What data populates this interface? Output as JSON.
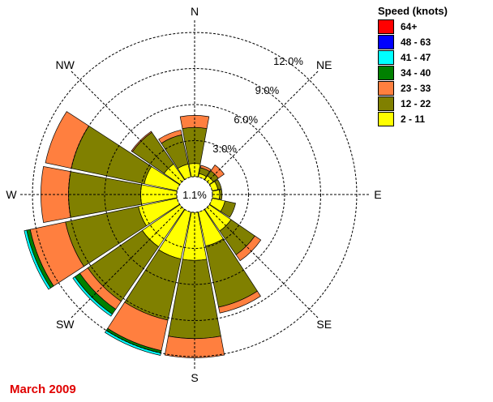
{
  "chart_data": {
    "type": "wind-rose",
    "caption": "March 2009",
    "calm_label": "1.1%",
    "directions": [
      "N",
      "NE",
      "E",
      "SE",
      "S",
      "SW",
      "W",
      "NW"
    ],
    "ring_labels": [
      "3.0%",
      "6.0%",
      "9.0%",
      "12.0%"
    ],
    "rings_percent": [
      3,
      6,
      9,
      12
    ],
    "legend_title": "Speed (knots)",
    "speed_classes": [
      {
        "label": "64+",
        "color": "#ff0000"
      },
      {
        "label": "48 - 63",
        "color": "#0000ff"
      },
      {
        "label": "41 - 47",
        "color": "#00ffff"
      },
      {
        "label": "34 - 40",
        "color": "#008000"
      },
      {
        "label": "23 - 33",
        "color": "#ff7f3f"
      },
      {
        "label": "12 - 22",
        "color": "#808000"
      },
      {
        "label": "2 - 11",
        "color": "#ffff00"
      }
    ],
    "sectors": [
      {
        "dir": "N",
        "bins": {
          "2 - 11": 1.1,
          "12 - 22": 3.0,
          "23 - 33": 1.0,
          "34 - 40": 0,
          "41 - 47": 0,
          "48 - 63": 0,
          "64+": 0
        }
      },
      {
        "dir": "NNE",
        "bins": {
          "2 - 11": 0.3,
          "12 - 22": 0.5,
          "23 - 33": 0.2,
          "34 - 40": 0,
          "41 - 47": 0,
          "48 - 63": 0,
          "64+": 0
        }
      },
      {
        "dir": "NE",
        "bins": {
          "2 - 11": 0.4,
          "12 - 22": 0.5,
          "23 - 33": 0.6,
          "34 - 40": 0,
          "41 - 47": 0,
          "48 - 63": 0,
          "64+": 0
        }
      },
      {
        "dir": "ENE",
        "bins": {
          "2 - 11": 0.5,
          "12 - 22": 0.3,
          "23 - 33": 0,
          "34 - 40": 0,
          "41 - 47": 0,
          "48 - 63": 0,
          "64+": 0
        }
      },
      {
        "dir": "E",
        "bins": {
          "2 - 11": 0.6,
          "12 - 22": 0.2,
          "23 - 33": 0,
          "34 - 40": 0,
          "41 - 47": 0,
          "48 - 63": 0,
          "64+": 0
        }
      },
      {
        "dir": "ESE",
        "bins": {
          "2 - 11": 1.1,
          "12 - 22": 0.9,
          "23 - 33": 0,
          "34 - 40": 0,
          "41 - 47": 0,
          "48 - 63": 0,
          "64+": 0
        }
      },
      {
        "dir": "SE",
        "bins": {
          "2 - 11": 2.2,
          "12 - 22": 2.4,
          "23 - 33": 0.6,
          "34 - 40": 0,
          "41 - 47": 0,
          "48 - 63": 0,
          "64+": 0
        }
      },
      {
        "dir": "SSE",
        "bins": {
          "2 - 11": 2.9,
          "12 - 22": 5.2,
          "23 - 33": 0.5,
          "34 - 40": 0,
          "41 - 47": 0,
          "48 - 63": 0,
          "64+": 0
        }
      },
      {
        "dir": "S",
        "bins": {
          "2 - 11": 4.0,
          "12 - 22": 6.5,
          "23 - 33": 1.6,
          "34 - 40": 0,
          "41 - 47": 0,
          "48 - 63": 0,
          "64+": 0
        }
      },
      {
        "dir": "SSW",
        "bins": {
          "2 - 11": 4.0,
          "12 - 22": 5.2,
          "23 - 33": 2.6,
          "34 - 40": 0.2,
          "41 - 47": 0.2,
          "48 - 63": 0,
          "64+": 0
        }
      },
      {
        "dir": "SW",
        "bins": {
          "2 - 11": 3.8,
          "12 - 22": 5.5,
          "23 - 33": 0.8,
          "34 - 40": 0.5,
          "41 - 47": 0.2,
          "48 - 63": 0,
          "64+": 0
        }
      },
      {
        "dir": "WSW",
        "bins": {
          "2 - 11": 3.3,
          "12 - 22": 6.2,
          "23 - 33": 3.0,
          "34 - 40": 0.3,
          "41 - 47": 0.2,
          "48 - 63": 0,
          "64+": 0
        }
      },
      {
        "dir": "W",
        "bins": {
          "2 - 11": 3.0,
          "12 - 22": 6.0,
          "23 - 33": 2.3,
          "34 - 40": 0,
          "41 - 47": 0,
          "48 - 63": 0,
          "64+": 0
        }
      },
      {
        "dir": "WNW",
        "bins": {
          "2 - 11": 2.8,
          "12 - 22": 6.2,
          "23 - 33": 2.2,
          "34 - 40": 0,
          "41 - 47": 0,
          "48 - 63": 0,
          "64+": 0
        }
      },
      {
        "dir": "NW",
        "bins": {
          "2 - 11": 1.6,
          "12 - 22": 3.2,
          "23 - 33": 0.1,
          "34 - 40": 0,
          "41 - 47": 0,
          "48 - 63": 0,
          "64+": 0
        }
      },
      {
        "dir": "NNW",
        "bins": {
          "2 - 11": 1.1,
          "12 - 22": 2.5,
          "23 - 33": 0.4,
          "34 - 40": 0,
          "41 - 47": 0,
          "48 - 63": 0,
          "64+": 0
        }
      }
    ]
  }
}
